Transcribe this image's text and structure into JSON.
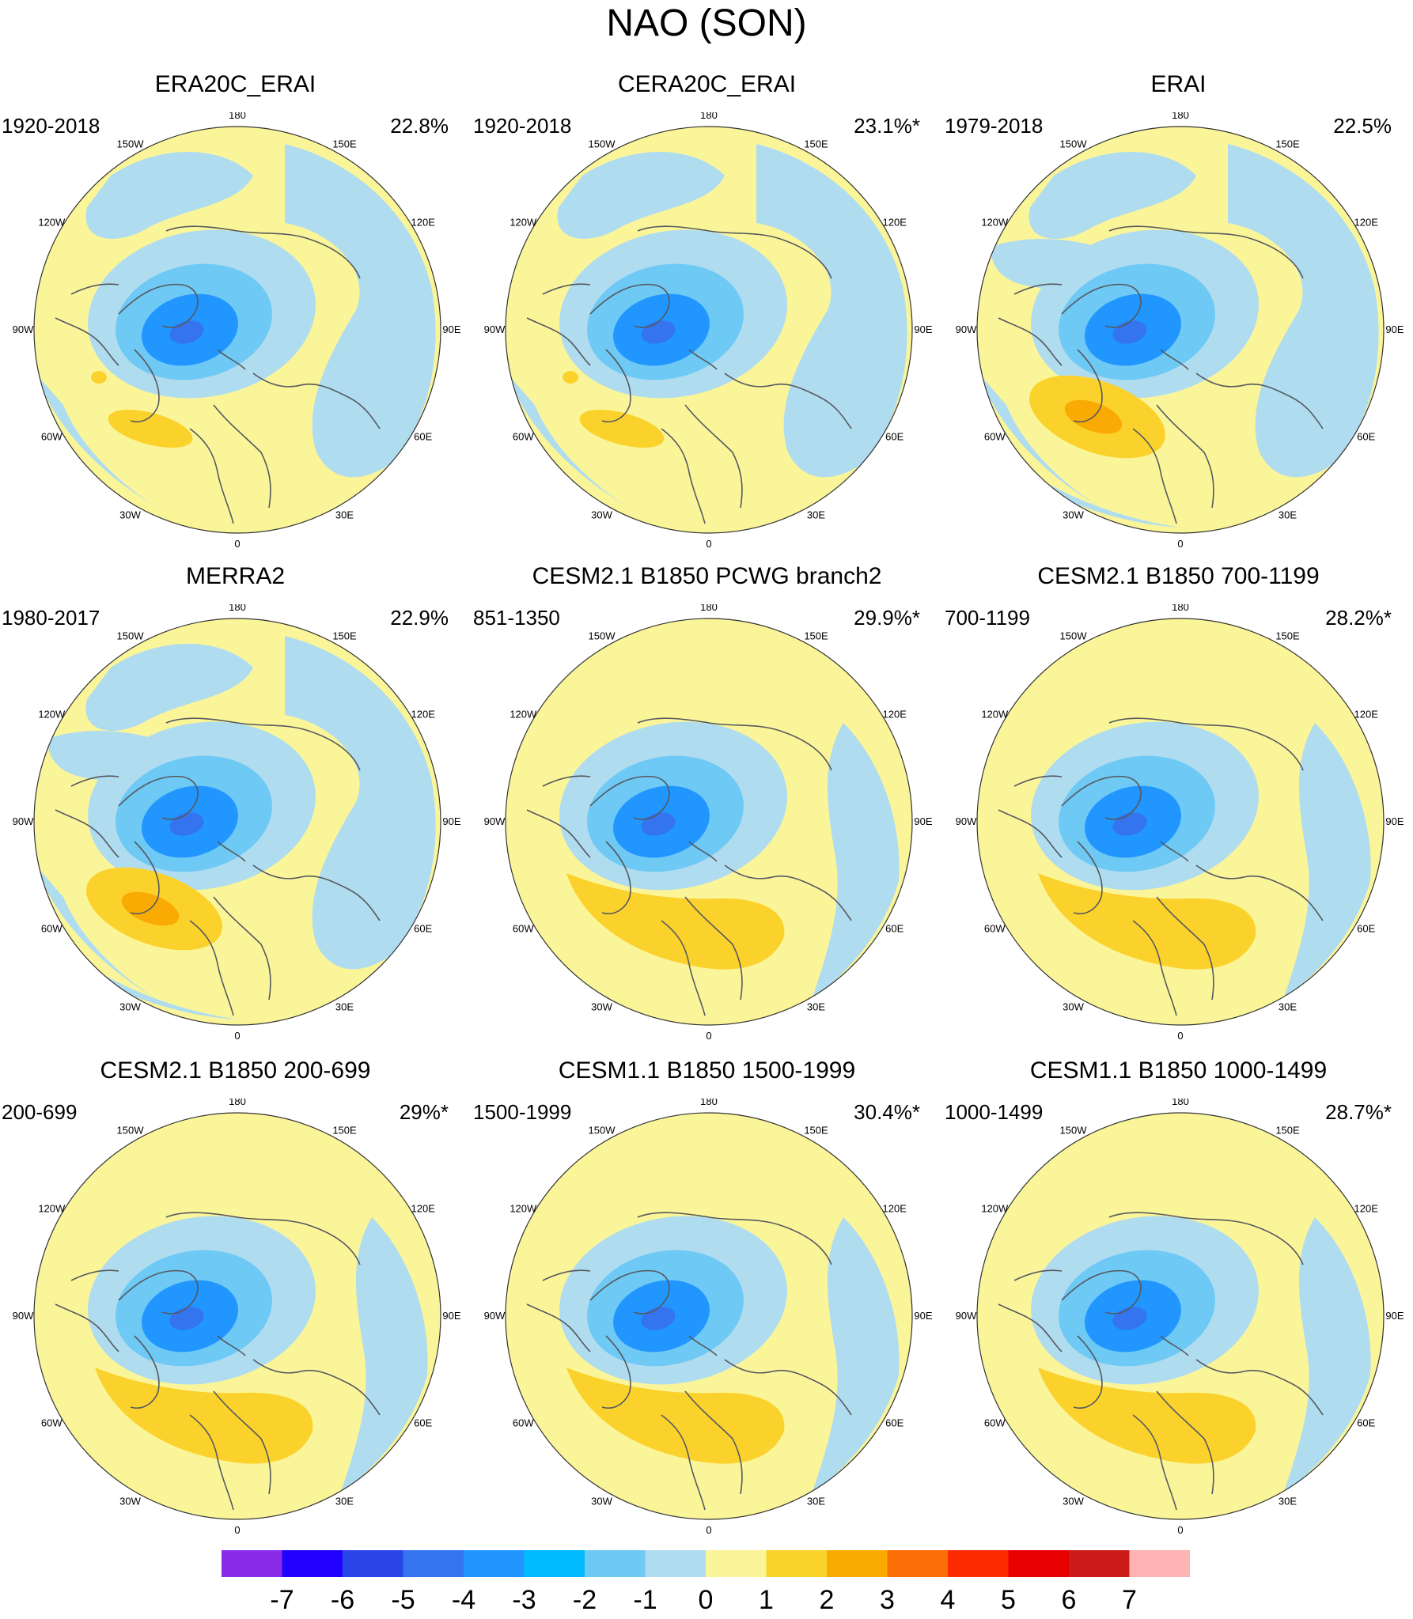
{
  "title": "NAO (SON)",
  "colors": {
    "land_line": "#55595e",
    "map_border": "#333333"
  },
  "lon_labels": [
    "180",
    "150E",
    "120E",
    "90E",
    "60E",
    "30E",
    "0",
    "30W",
    "60W",
    "90W",
    "120W",
    "150W"
  ],
  "panels": [
    {
      "title": "ERA20C_ERAI",
      "period": "1920-2018",
      "variance": "22.8%",
      "variant": "obs_a"
    },
    {
      "title": "CERA20C_ERAI",
      "period": "1920-2018",
      "variance": "23.1%*",
      "variant": "obs_a"
    },
    {
      "title": "ERAI",
      "period": "1979-2018",
      "variance": "22.5%",
      "variant": "obs_b"
    },
    {
      "title": "MERRA2",
      "period": "1980-2017",
      "variance": "22.9%",
      "variant": "obs_b"
    },
    {
      "title": "CESM2.1 B1850 PCWG branch2",
      "period": "851-1350",
      "variance": "29.9%*",
      "variant": "model"
    },
    {
      "title": "CESM2.1 B1850 700-1199",
      "period": "700-1199",
      "variance": "28.2%*",
      "variant": "model"
    },
    {
      "title": "CESM2.1 B1850 200-699",
      "period": "200-699",
      "variance": "29%*",
      "variant": "model"
    },
    {
      "title": "CESM1.1 B1850 1500-1999",
      "period": "1500-1999",
      "variance": "30.4%*",
      "variant": "model"
    },
    {
      "title": "CESM1.1 B1850 1000-1499",
      "period": "1000-1499",
      "variance": "28.7%*",
      "variant": "model"
    }
  ],
  "chart_data": {
    "type": "heatmap",
    "title": "NAO (SON)",
    "projection": "North polar stereographic",
    "units_legend": "contour levels",
    "colorbar": {
      "labels": [
        "-7",
        "-6",
        "-5",
        "-4",
        "-3",
        "-2",
        "-1",
        "0",
        "1",
        "2",
        "3",
        "4",
        "5",
        "6",
        "7"
      ],
      "levels": [
        -7,
        -6,
        -5,
        -4,
        -3,
        -2,
        -1,
        0,
        1,
        2,
        3,
        4,
        5,
        6,
        7
      ],
      "colors": [
        "#8a2be8",
        "#2200ff",
        "#2a45e8",
        "#3474ee",
        "#2196ff",
        "#00bbff",
        "#6ec9f5",
        "#b0dcf0",
        "#fbf59a",
        "#fbd22c",
        "#f9ab04",
        "#fc6f07",
        "#ff2b00",
        "#e80000",
        "#cd1a1a",
        "#ffb3b3"
      ]
    },
    "panels": [
      {
        "name": "ERA20C_ERAI",
        "period": "1920-2018",
        "explained_variance": "22.8%",
        "min_level": -4,
        "max_level": 2
      },
      {
        "name": "CERA20C_ERAI",
        "period": "1920-2018",
        "explained_variance": "23.1%*",
        "min_level": -4,
        "max_level": 2
      },
      {
        "name": "ERAI",
        "period": "1979-2018",
        "explained_variance": "22.5%",
        "min_level": -4,
        "max_level": 3
      },
      {
        "name": "MERRA2",
        "period": "1980-2017",
        "explained_variance": "22.9%",
        "min_level": -4,
        "max_level": 3
      },
      {
        "name": "CESM2.1 B1850 PCWG branch2",
        "period": "851-1350",
        "explained_variance": "29.9%*",
        "min_level": -4,
        "max_level": 2
      },
      {
        "name": "CESM2.1 B1850 700-1199",
        "period": "700-1199",
        "explained_variance": "28.2%*",
        "min_level": -4,
        "max_level": 2
      },
      {
        "name": "CESM2.1 B1850 200-699",
        "period": "200-699",
        "explained_variance": "29%*",
        "min_level": -4,
        "max_level": 2
      },
      {
        "name": "CESM1.1 B1850 1500-1999",
        "period": "1500-1999",
        "explained_variance": "30.4%*",
        "min_level": -4,
        "max_level": 2
      },
      {
        "name": "CESM1.1 B1850 1000-1499",
        "period": "1000-1499",
        "explained_variance": "28.7%*",
        "min_level": -4,
        "max_level": 2
      }
    ]
  }
}
